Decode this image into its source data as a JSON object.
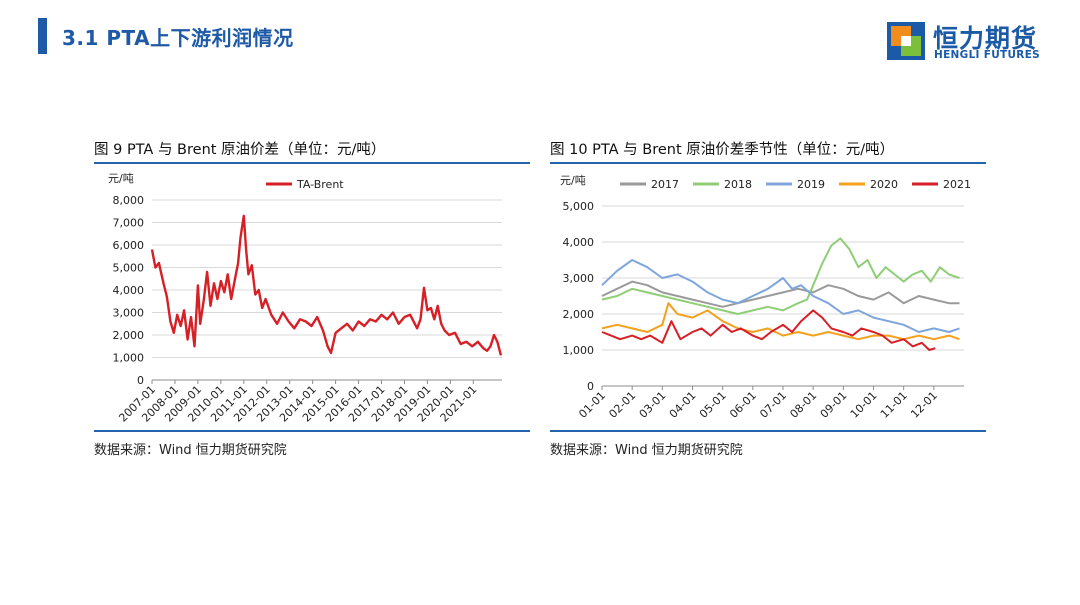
{
  "header": {
    "title": "3.1 PTA上下游利润情况",
    "logo_cn": "恒力期货",
    "logo_en": "HENGLI FUTURES"
  },
  "colors": {
    "accent": "#1f5aa6",
    "rule": "#2463ad",
    "logo_orange": "#f28c1c",
    "logo_green": "#7bbf3a",
    "logo_blue": "#1b5aa7"
  },
  "chart_data": [
    {
      "type": "line",
      "title": "图 9 PTA 与 Brent 原油价差（单位：元/吨）",
      "ylabel": "元/吨",
      "ylim": [
        0,
        8000
      ],
      "yticks": [
        0,
        1000,
        2000,
        3000,
        4000,
        5000,
        6000,
        7000,
        8000
      ],
      "ytick_labels": [
        "0",
        "1,000",
        "2,000",
        "3,000",
        "4,000",
        "5,000",
        "6,000",
        "7,000",
        "8,000"
      ],
      "xlim": [
        2007.0,
        2022.25
      ],
      "xticks": [
        2007,
        2008,
        2009,
        2010,
        2011,
        2012,
        2013,
        2014,
        2015,
        2016,
        2017,
        2018,
        2019,
        2020,
        2021
      ],
      "xtick_labels": [
        "2007-01",
        "2008-01",
        "2009-01",
        "2010-01",
        "2011-01",
        "2012-01",
        "2013-01",
        "2014-01",
        "2015-01",
        "2016-01",
        "2017-01",
        "2018-01",
        "2019-01",
        "2020-01",
        "2021-01"
      ],
      "grid": true,
      "legend": "top-center",
      "source": "数据来源：Wind 恒力期货研究院",
      "series": [
        {
          "name": "TA-Brent",
          "color": "#d71f26",
          "x": [
            2007.0,
            2007.15,
            2007.3,
            2007.5,
            2007.65,
            2007.8,
            2007.95,
            2008.1,
            2008.25,
            2008.4,
            2008.55,
            2008.7,
            2008.85,
            2009.0,
            2009.1,
            2009.25,
            2009.4,
            2009.55,
            2009.7,
            2009.85,
            2010.0,
            2010.15,
            2010.3,
            2010.45,
            2010.6,
            2010.75,
            2010.85,
            2011.0,
            2011.1,
            2011.2,
            2011.35,
            2011.5,
            2011.65,
            2011.8,
            2011.95,
            2012.2,
            2012.45,
            2012.7,
            2012.95,
            2013.2,
            2013.45,
            2013.7,
            2013.95,
            2014.2,
            2014.45,
            2014.65,
            2014.8,
            2015.0,
            2015.25,
            2015.5,
            2015.75,
            2016.0,
            2016.25,
            2016.5,
            2016.75,
            2017.0,
            2017.25,
            2017.5,
            2017.75,
            2018.0,
            2018.25,
            2018.55,
            2018.7,
            2018.85,
            2019.0,
            2019.15,
            2019.3,
            2019.45,
            2019.6,
            2019.75,
            2019.95,
            2020.2,
            2020.45,
            2020.7,
            2020.95,
            2021.2,
            2021.45,
            2021.6,
            2021.75,
            2021.9,
            2022.05,
            2022.2
          ],
          "values": [
            5800,
            5000,
            5200,
            4300,
            3700,
            2600,
            2100,
            2900,
            2400,
            3100,
            1800,
            2800,
            1500,
            4200,
            2500,
            3500,
            4800,
            3300,
            4300,
            3600,
            4400,
            3900,
            4700,
            3600,
            4400,
            5200,
            6300,
            7300,
            5800,
            4700,
            5100,
            3800,
            4000,
            3200,
            3600,
            2900,
            2500,
            3000,
            2600,
            2300,
            2700,
            2600,
            2400,
            2800,
            2200,
            1500,
            1200,
            2100,
            2300,
            2500,
            2200,
            2600,
            2400,
            2700,
            2600,
            2900,
            2700,
            3000,
            2500,
            2800,
            2900,
            2300,
            2700,
            4100,
            3100,
            3200,
            2700,
            3300,
            2500,
            2200,
            2000,
            2100,
            1600,
            1700,
            1500,
            1700,
            1400,
            1300,
            1500,
            2000,
            1700,
            1100
          ]
        }
      ]
    },
    {
      "type": "line",
      "title": "图 10 PTA 与 Brent 原油价差季节性（单位：元/吨）",
      "ylabel": "元/吨",
      "ylim": [
        0,
        5000
      ],
      "yticks": [
        0,
        1000,
        2000,
        3000,
        4000,
        5000
      ],
      "ytick_labels": [
        "0",
        "1,000",
        "2,000",
        "3,000",
        "4,000",
        "5,000"
      ],
      "xlim": [
        1,
        13
      ],
      "xticks": [
        1,
        2,
        3,
        4,
        5,
        6,
        7,
        8,
        9,
        10,
        11,
        12
      ],
      "xtick_labels": [
        "01-01",
        "02-01",
        "03-01",
        "04-01",
        "05-01",
        "06-01",
        "07-01",
        "08-01",
        "09-01",
        "10-01",
        "11-01",
        "12-01"
      ],
      "grid": true,
      "legend": "top",
      "source": "数据来源：Wind 恒力期货研究院",
      "series": [
        {
          "name": "2017",
          "color": "#9a9a9a",
          "x": [
            1.0,
            1.5,
            2.0,
            2.5,
            3.0,
            3.5,
            4.0,
            4.5,
            5.0,
            5.5,
            6.0,
            6.5,
            7.0,
            7.5,
            8.0,
            8.5,
            9.0,
            9.5,
            10.0,
            10.5,
            11.0,
            11.5,
            12.0,
            12.5,
            12.85
          ],
          "values": [
            2500,
            2700,
            2900,
            2800,
            2600,
            2500,
            2400,
            2300,
            2200,
            2300,
            2400,
            2500,
            2600,
            2700,
            2600,
            2800,
            2700,
            2500,
            2400,
            2600,
            2300,
            2500,
            2400,
            2300,
            2300
          ]
        },
        {
          "name": "2018",
          "color": "#8fce76",
          "x": [
            1.0,
            1.5,
            2.0,
            2.5,
            3.0,
            3.5,
            4.0,
            4.5,
            5.0,
            5.5,
            6.0,
            6.5,
            7.0,
            7.5,
            7.8,
            8.0,
            8.3,
            8.6,
            8.9,
            9.2,
            9.5,
            9.8,
            10.1,
            10.4,
            10.7,
            11.0,
            11.3,
            11.6,
            11.9,
            12.2,
            12.5,
            12.85
          ],
          "values": [
            2400,
            2500,
            2700,
            2600,
            2500,
            2400,
            2300,
            2200,
            2100,
            2000,
            2100,
            2200,
            2100,
            2300,
            2400,
            2800,
            3400,
            3900,
            4100,
            3800,
            3300,
            3500,
            3000,
            3300,
            3100,
            2900,
            3100,
            3200,
            2900,
            3300,
            3100,
            3000
          ]
        },
        {
          "name": "2019",
          "color": "#7fa6dc",
          "x": [
            1.0,
            1.5,
            2.0,
            2.5,
            3.0,
            3.5,
            4.0,
            4.5,
            5.0,
            5.5,
            6.0,
            6.5,
            7.0,
            7.3,
            7.6,
            8.0,
            8.5,
            9.0,
            9.5,
            10.0,
            10.5,
            11.0,
            11.5,
            12.0,
            12.5,
            12.85
          ],
          "values": [
            2800,
            3200,
            3500,
            3300,
            3000,
            3100,
            2900,
            2600,
            2400,
            2300,
            2500,
            2700,
            3000,
            2700,
            2800,
            2500,
            2300,
            2000,
            2100,
            1900,
            1800,
            1700,
            1500,
            1600,
            1500,
            1600
          ]
        },
        {
          "name": "2020",
          "color": "#f4a11d",
          "x": [
            1.0,
            1.5,
            2.0,
            2.5,
            3.0,
            3.2,
            3.5,
            4.0,
            4.5,
            5.0,
            5.5,
            6.0,
            6.5,
            7.0,
            7.5,
            8.0,
            8.5,
            9.0,
            9.5,
            10.0,
            10.5,
            11.0,
            11.5,
            12.0,
            12.5,
            12.85
          ],
          "values": [
            1600,
            1700,
            1600,
            1500,
            1700,
            2300,
            2000,
            1900,
            2100,
            1800,
            1600,
            1500,
            1600,
            1400,
            1500,
            1400,
            1500,
            1400,
            1300,
            1400,
            1400,
            1300,
            1400,
            1300,
            1400,
            1300
          ]
        },
        {
          "name": "2021",
          "color": "#d71f26",
          "x": [
            1.0,
            1.3,
            1.6,
            2.0,
            2.3,
            2.6,
            3.0,
            3.3,
            3.6,
            4.0,
            4.3,
            4.6,
            5.0,
            5.3,
            5.6,
            6.0,
            6.3,
            6.6,
            7.0,
            7.3,
            7.6,
            8.0,
            8.3,
            8.6,
            9.0,
            9.3,
            9.6,
            10.0,
            10.3,
            10.6,
            11.0,
            11.3,
            11.6,
            11.85,
            12.05
          ],
          "values": [
            1500,
            1400,
            1300,
            1400,
            1300,
            1400,
            1200,
            1800,
            1300,
            1500,
            1600,
            1400,
            1700,
            1500,
            1600,
            1400,
            1300,
            1500,
            1700,
            1500,
            1800,
            2100,
            1900,
            1600,
            1500,
            1400,
            1600,
            1500,
            1400,
            1200,
            1300,
            1100,
            1200,
            1000,
            1050
          ]
        }
      ]
    }
  ]
}
